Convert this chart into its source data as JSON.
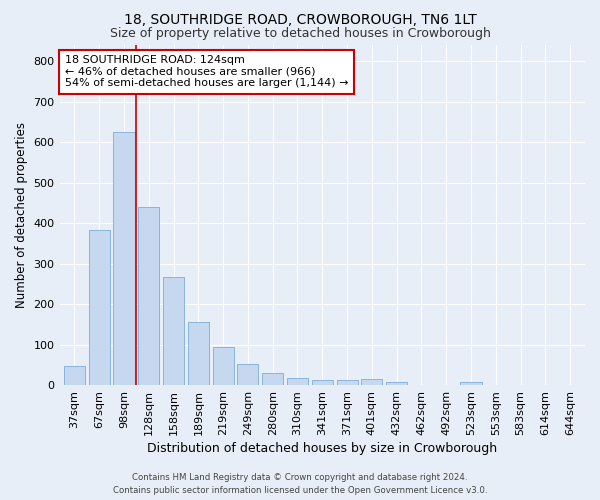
{
  "title1": "18, SOUTHRIDGE ROAD, CROWBOROUGH, TN6 1LT",
  "title2": "Size of property relative to detached houses in Crowborough",
  "xlabel": "Distribution of detached houses by size in Crowborough",
  "ylabel": "Number of detached properties",
  "categories": [
    "37sqm",
    "67sqm",
    "98sqm",
    "128sqm",
    "158sqm",
    "189sqm",
    "219sqm",
    "249sqm",
    "280sqm",
    "310sqm",
    "341sqm",
    "371sqm",
    "401sqm",
    "432sqm",
    "462sqm",
    "492sqm",
    "523sqm",
    "553sqm",
    "583sqm",
    "614sqm",
    "644sqm"
  ],
  "values": [
    47,
    383,
    625,
    440,
    268,
    157,
    95,
    52,
    30,
    17,
    12,
    12,
    15,
    8,
    0,
    0,
    7,
    0,
    0,
    0,
    0
  ],
  "bar_color": "#c5d8f0",
  "bar_edge_color": "#7aaed6",
  "vline_color": "#cc0000",
  "annotation_line1": "18 SOUTHRIDGE ROAD: 124sqm",
  "annotation_line2": "← 46% of detached houses are smaller (966)",
  "annotation_line3": "54% of semi-detached houses are larger (1,144) →",
  "annotation_box_color": "#ffffff",
  "annotation_box_edge": "#cc0000",
  "ylim": [
    0,
    840
  ],
  "yticks": [
    0,
    100,
    200,
    300,
    400,
    500,
    600,
    700,
    800
  ],
  "footer1": "Contains HM Land Registry data © Crown copyright and database right 2024.",
  "footer2": "Contains public sector information licensed under the Open Government Licence v3.0.",
  "bg_color": "#e8eef7",
  "title1_fontsize": 10,
  "title2_fontsize": 9,
  "tick_fontsize": 8,
  "ylabel_fontsize": 8.5,
  "xlabel_fontsize": 9
}
